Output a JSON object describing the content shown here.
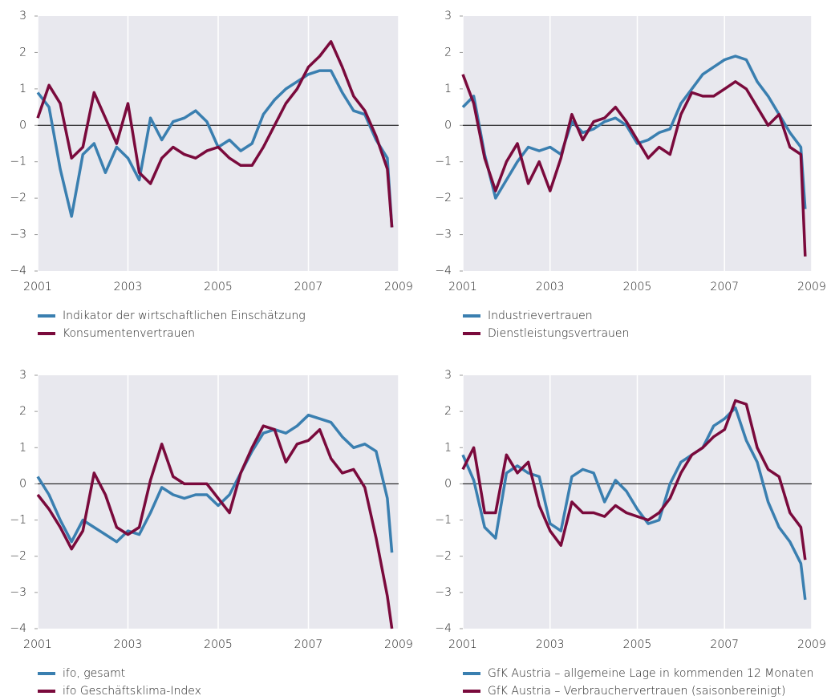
{
  "chart_data": [
    {
      "type": "line",
      "x": [
        2001,
        2001.25,
        2001.5,
        2001.75,
        2002,
        2002.25,
        2002.5,
        2002.75,
        2003,
        2003.25,
        2003.5,
        2003.75,
        2004,
        2004.25,
        2004.5,
        2004.75,
        2005,
        2005.25,
        2005.5,
        2005.75,
        2006,
        2006.25,
        2006.5,
        2006.75,
        2007,
        2007.25,
        2007.5,
        2007.75,
        2008,
        2008.25,
        2008.5,
        2008.75,
        2008.85
      ],
      "series": [
        {
          "name": "Indikator der wirtschaftlichen Einschätzung",
          "color": "#3a7fb0",
          "values": [
            0.9,
            0.5,
            -1.2,
            -2.5,
            -0.8,
            -0.5,
            -1.3,
            -0.6,
            -0.9,
            -1.5,
            0.2,
            -0.4,
            0.1,
            0.2,
            0.4,
            0.1,
            -0.6,
            -0.4,
            -0.7,
            -0.5,
            0.3,
            0.7,
            1.0,
            1.2,
            1.4,
            1.5,
            1.5,
            0.9,
            0.4,
            0.3,
            -0.4,
            -0.9,
            -2.8
          ]
        },
        {
          "name": "Konsumentenvertrauen",
          "color": "#7a0a3c",
          "values": [
            0.2,
            1.1,
            0.6,
            -0.9,
            -0.6,
            0.9,
            0.2,
            -0.5,
            0.6,
            -1.3,
            -1.6,
            -0.9,
            -0.6,
            -0.8,
            -0.9,
            -0.7,
            -0.6,
            -0.9,
            -1.1,
            -1.1,
            -0.6,
            0.0,
            0.6,
            1.0,
            1.6,
            1.9,
            2.3,
            1.6,
            0.8,
            0.4,
            -0.3,
            -1.2,
            -2.8
          ]
        }
      ],
      "xlim": [
        2001,
        2009
      ],
      "xticks": [
        2001,
        2003,
        2005,
        2007,
        2009
      ],
      "ylim": [
        -4,
        3
      ],
      "yticks": [
        {
          "value": -4,
          "label": "−4"
        },
        {
          "value": -3,
          "label": "−3"
        },
        {
          "value": -2,
          "label": "−2"
        },
        {
          "value": -1,
          "label": "−1"
        },
        0,
        1,
        2,
        3
      ],
      "grid": true,
      "zero_line": true,
      "legend": "bottom"
    },
    {
      "type": "line",
      "x": [
        2001,
        2001.25,
        2001.5,
        2001.75,
        2002,
        2002.25,
        2002.5,
        2002.75,
        2003,
        2003.25,
        2003.5,
        2003.75,
        2004,
        2004.25,
        2004.5,
        2004.75,
        2005,
        2005.25,
        2005.5,
        2005.75,
        2006,
        2006.25,
        2006.5,
        2006.75,
        2007,
        2007.25,
        2007.5,
        2007.75,
        2008,
        2008.25,
        2008.5,
        2008.75,
        2008.85
      ],
      "series": [
        {
          "name": "Industrievertrauen",
          "color": "#3a7fb0",
          "values": [
            0.5,
            0.8,
            -0.8,
            -2.0,
            -1.5,
            -1.0,
            -0.6,
            -0.7,
            -0.6,
            -0.8,
            0.1,
            -0.2,
            -0.1,
            0.1,
            0.2,
            0.0,
            -0.5,
            -0.4,
            -0.2,
            -0.1,
            0.6,
            1.0,
            1.4,
            1.6,
            1.8,
            1.9,
            1.8,
            1.2,
            0.8,
            0.3,
            -0.2,
            -0.6,
            -2.3
          ]
        },
        {
          "name": "Dienstleistungsvertrauen",
          "color": "#7a0a3c",
          "values": [
            1.4,
            0.6,
            -0.9,
            -1.8,
            -1.0,
            -0.5,
            -1.6,
            -1.0,
            -1.8,
            -0.9,
            0.3,
            -0.4,
            0.1,
            0.2,
            0.5,
            0.1,
            -0.4,
            -0.9,
            -0.6,
            -0.8,
            0.3,
            0.9,
            0.8,
            0.8,
            1.0,
            1.2,
            1.0,
            0.5,
            0.0,
            0.3,
            -0.6,
            -0.8,
            -3.6
          ]
        }
      ],
      "xlim": [
        2001,
        2009
      ],
      "xticks": [
        2001,
        2003,
        2005,
        2007,
        2009
      ],
      "ylim": [
        -4,
        3
      ],
      "yticks": [
        {
          "value": -4,
          "label": "−4"
        },
        {
          "value": -3,
          "label": "−3"
        },
        {
          "value": -2,
          "label": "−2"
        },
        {
          "value": -1,
          "label": "−1"
        },
        0,
        1,
        2,
        3
      ],
      "grid": true,
      "zero_line": true,
      "legend": "bottom"
    },
    {
      "type": "line",
      "x": [
        2001,
        2001.25,
        2001.5,
        2001.75,
        2002,
        2002.25,
        2002.5,
        2002.75,
        2003,
        2003.25,
        2003.5,
        2003.75,
        2004,
        2004.25,
        2004.5,
        2004.75,
        2005,
        2005.25,
        2005.5,
        2005.75,
        2006,
        2006.25,
        2006.5,
        2006.75,
        2007,
        2007.25,
        2007.5,
        2007.75,
        2008,
        2008.25,
        2008.5,
        2008.75,
        2008.85
      ],
      "series": [
        {
          "name": "ifo, gesamt",
          "color": "#3a7fb0",
          "values": [
            0.2,
            -0.3,
            -1.0,
            -1.6,
            -1.0,
            -1.2,
            -1.4,
            -1.6,
            -1.3,
            -1.4,
            -0.8,
            -0.1,
            -0.3,
            -0.4,
            -0.3,
            -0.3,
            -0.6,
            -0.3,
            0.3,
            0.9,
            1.4,
            1.5,
            1.4,
            1.6,
            1.9,
            1.8,
            1.7,
            1.3,
            1.0,
            1.1,
            0.9,
            -0.4,
            -1.9
          ]
        },
        {
          "name": "ifo Geschäftsklima-Index",
          "color": "#7a0a3c",
          "values": [
            -0.3,
            -0.7,
            -1.2,
            -1.8,
            -1.3,
            0.3,
            -0.3,
            -1.2,
            -1.4,
            -1.2,
            0.1,
            1.1,
            0.2,
            0.0,
            0.0,
            0.0,
            -0.4,
            -0.8,
            0.3,
            1.0,
            1.6,
            1.5,
            0.6,
            1.1,
            1.2,
            1.5,
            0.7,
            0.3,
            0.4,
            -0.1,
            -1.5,
            -3.1,
            -4.0
          ]
        }
      ],
      "xlim": [
        2001,
        2009
      ],
      "xticks": [
        2001,
        2003,
        2005,
        2007,
        2009
      ],
      "ylim": [
        -4,
        3
      ],
      "yticks": [
        {
          "value": -4,
          "label": "−4"
        },
        {
          "value": -3,
          "label": "−3"
        },
        {
          "value": -2,
          "label": "−2"
        },
        {
          "value": -1,
          "label": "−1"
        },
        0,
        1,
        2,
        3
      ],
      "grid": true,
      "zero_line": true,
      "legend": "bottom"
    },
    {
      "type": "line",
      "x": [
        2001,
        2001.25,
        2001.5,
        2001.75,
        2002,
        2002.25,
        2002.5,
        2002.75,
        2003,
        2003.25,
        2003.5,
        2003.75,
        2004,
        2004.25,
        2004.5,
        2004.75,
        2005,
        2005.25,
        2005.5,
        2005.75,
        2006,
        2006.25,
        2006.5,
        2006.75,
        2007,
        2007.25,
        2007.5,
        2007.75,
        2008,
        2008.25,
        2008.5,
        2008.75,
        2008.85
      ],
      "series": [
        {
          "name": "GfK Austria – allgemeine Lage in kommenden 12 Monaten",
          "color": "#3a7fb0",
          "values": [
            0.8,
            0.1,
            -1.2,
            -1.5,
            0.3,
            0.5,
            0.3,
            0.2,
            -1.1,
            -1.3,
            0.2,
            0.4,
            0.3,
            -0.5,
            0.1,
            -0.2,
            -0.7,
            -1.1,
            -1.0,
            0.0,
            0.6,
            0.8,
            1.0,
            1.6,
            1.8,
            2.1,
            1.2,
            0.6,
            -0.5,
            -1.2,
            -1.6,
            -2.2,
            -3.2
          ]
        },
        {
          "name": "GfK Austria – Verbrauchervertrauen (saisonbereinigt)",
          "color": "#7a0a3c",
          "values": [
            0.4,
            1.0,
            -0.8,
            -0.8,
            0.8,
            0.3,
            0.6,
            -0.6,
            -1.3,
            -1.7,
            -0.5,
            -0.8,
            -0.8,
            -0.9,
            -0.6,
            -0.8,
            -0.9,
            -1.0,
            -0.8,
            -0.4,
            0.3,
            0.8,
            1.0,
            1.3,
            1.5,
            2.3,
            2.2,
            1.0,
            0.4,
            0.2,
            -0.8,
            -1.2,
            -2.1
          ]
        }
      ],
      "xlim": [
        2001,
        2009
      ],
      "xticks": [
        2001,
        2003,
        2005,
        2007,
        2009
      ],
      "ylim": [
        -4,
        3
      ],
      "yticks": [
        {
          "value": -4,
          "label": "−4"
        },
        {
          "value": -3,
          "label": "−3"
        },
        {
          "value": -2,
          "label": "−2"
        },
        {
          "value": -1,
          "label": "−1"
        },
        0,
        1,
        2,
        3
      ],
      "grid": true,
      "zero_line": true,
      "legend": "bottom"
    }
  ]
}
